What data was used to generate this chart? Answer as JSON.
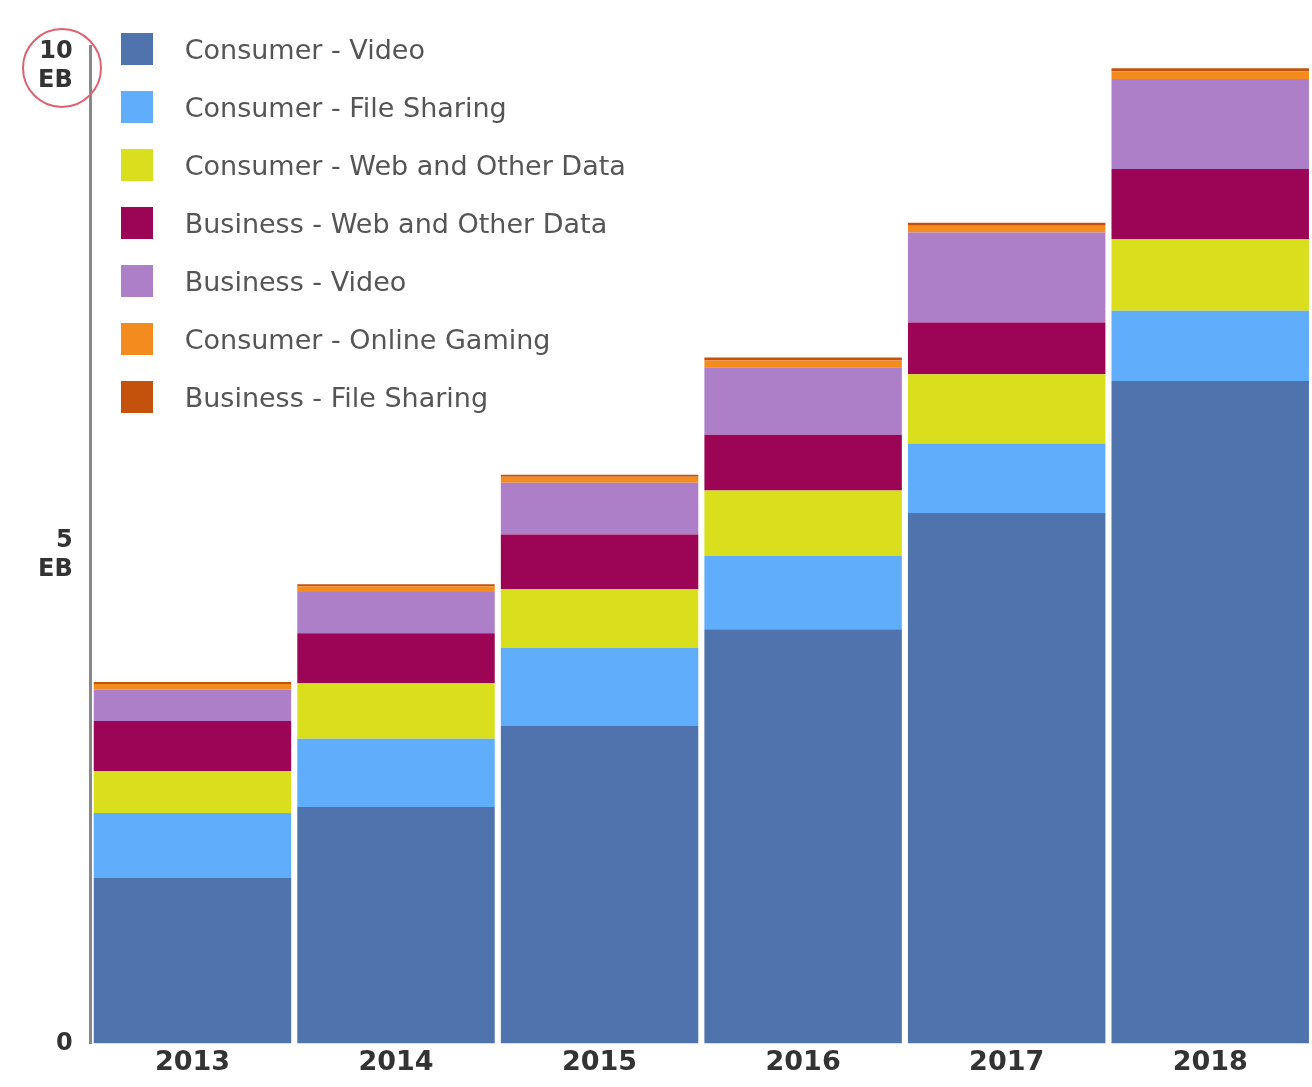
{
  "chart_data": {
    "type": "bar",
    "stacked": true,
    "categories": [
      "2013",
      "2014",
      "2015",
      "2016",
      "2017",
      "2018"
    ],
    "series": [
      {
        "name": "Consumer - Video",
        "color": "#4f73ad",
        "values": [
          1.7,
          2.42,
          3.25,
          4.24,
          5.43,
          6.78
        ]
      },
      {
        "name": "Consumer - File Sharing",
        "color": "#5fadfb",
        "values": [
          0.66,
          0.7,
          0.8,
          0.75,
          0.71,
          0.72
        ]
      },
      {
        "name": "Consumer - Web and Other Data",
        "color": "#d9de1d",
        "values": [
          0.43,
          0.57,
          0.6,
          0.67,
          0.71,
          0.73
        ]
      },
      {
        "name": "Business - Web and Other Data",
        "color": "#9c0456",
        "values": [
          0.51,
          0.51,
          0.56,
          0.57,
          0.53,
          0.72
        ]
      },
      {
        "name": "Business - Video",
        "color": "#ad7fc9",
        "values": [
          0.32,
          0.42,
          0.53,
          0.69,
          0.92,
          0.92
        ]
      },
      {
        "name": "Consumer - Online Gaming",
        "color": "#f38b1f",
        "values": [
          0.06,
          0.06,
          0.06,
          0.07,
          0.07,
          0.08
        ]
      },
      {
        "name": "Business - File Sharing",
        "color": "#c4520c",
        "values": [
          0.02,
          0.02,
          0.02,
          0.03,
          0.03,
          0.03
        ]
      }
    ],
    "ylim": [
      0,
      10.2
    ],
    "yticks": [
      0,
      {
        "value": 5,
        "label": "5\nEB"
      },
      {
        "value": 10,
        "label": "10\nEB"
      }
    ],
    "grid": false,
    "legend": "top left"
  }
}
